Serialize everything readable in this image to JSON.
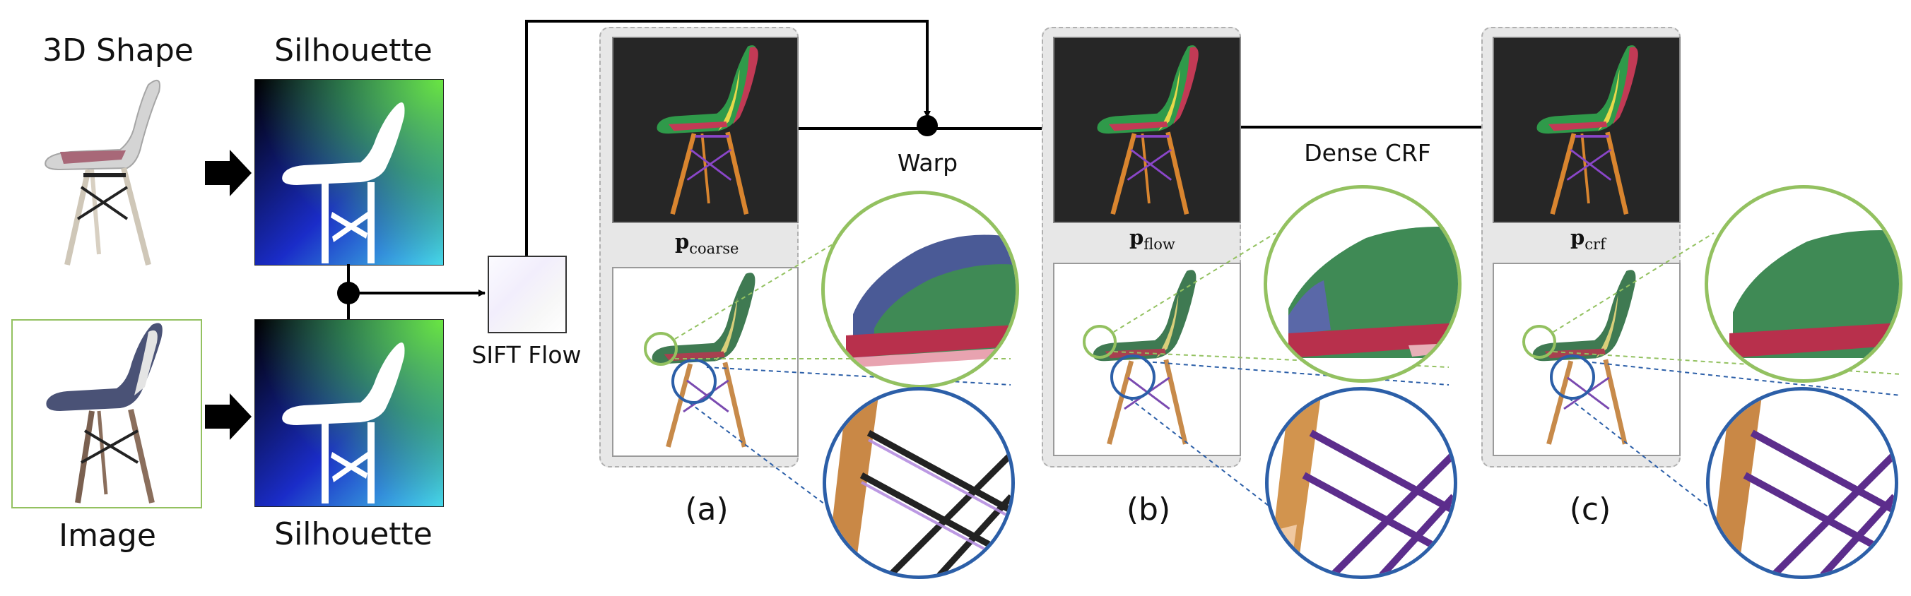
{
  "left": {
    "shape_label": "3D Shape",
    "silhouette_top_label": "Silhouette",
    "image_label": "Image",
    "silhouette_bottom_label": "Silhouette"
  },
  "flow": {
    "sift_label": "SIFT Flow",
    "warp_label": "Warp",
    "crf_label": "Dense CRF"
  },
  "panels": [
    {
      "letter": "(a)",
      "p_main": "p",
      "p_sub": "coarse"
    },
    {
      "letter": "(b)",
      "p_main": "p",
      "p_sub": "flow"
    },
    {
      "letter": "(c)",
      "p_main": "p",
      "p_sub": "crf"
    }
  ],
  "colors": {
    "seat_green": "#2f9a4a",
    "back_red": "#c23a55",
    "side_yellow": "#e7d84a",
    "leg_orange": "#d9852f",
    "brace_purple": "#8a46c8",
    "zoom_green": "#93c160",
    "zoom_blue": "#2c5fa8"
  }
}
